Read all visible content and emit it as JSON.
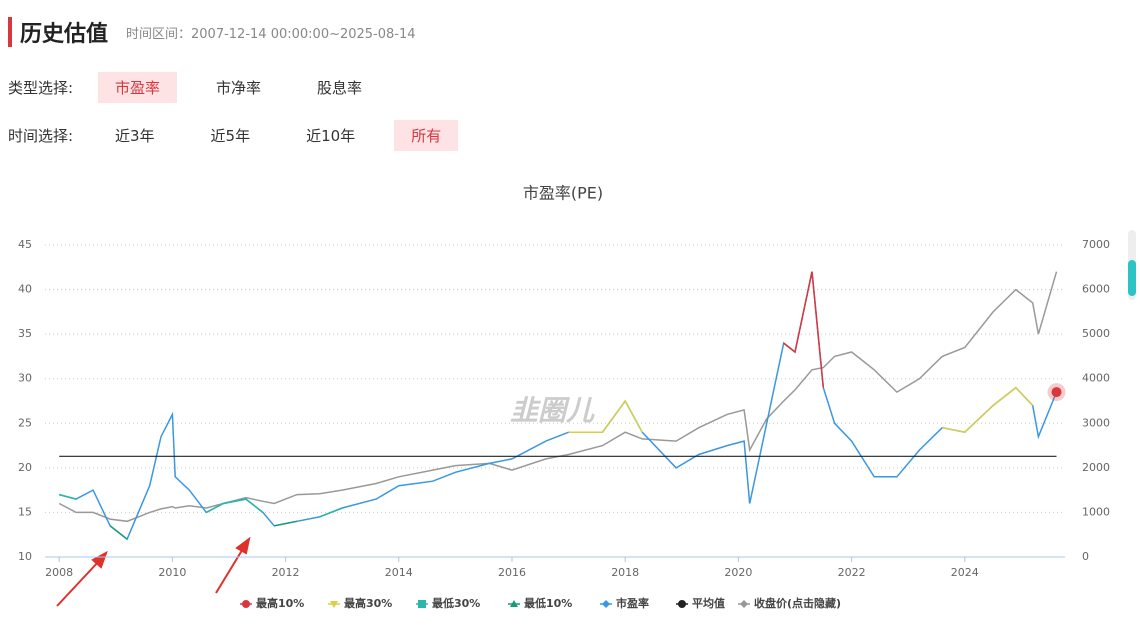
{
  "header": {
    "title": "历史估值",
    "range": "时间区间：2007-12-14 00:00:00~2025-08-14"
  },
  "type_select": {
    "label": "类型选择:",
    "options": [
      "市盈率",
      "市净率",
      "股息率"
    ],
    "active": 0
  },
  "time_select": {
    "label": "时间选择:",
    "options": [
      "近3年",
      "近5年",
      "近10年",
      "所有"
    ],
    "active": 3
  },
  "chart_data": {
    "type": "line",
    "title": "市盈率(PE)",
    "watermark": "韭圈儿",
    "x": [
      2008.0,
      2008.3,
      2008.6,
      2008.9,
      2009.2,
      2009.4,
      2009.6,
      2009.8,
      2010.0,
      2010.05,
      2010.3,
      2010.6,
      2010.9,
      2011.3,
      2011.6,
      2011.8,
      2012.2,
      2012.6,
      2013.0,
      2013.6,
      2014.0,
      2014.6,
      2015.0,
      2015.6,
      2016.0,
      2016.6,
      2017.0,
      2017.6,
      2018.0,
      2018.3,
      2018.9,
      2019.3,
      2019.8,
      2020.1,
      2020.2,
      2020.5,
      2020.8,
      2021.0,
      2021.3,
      2021.5,
      2021.7,
      2022.0,
      2022.4,
      2022.8,
      2023.2,
      2023.6,
      2024.0,
      2024.5,
      2024.9,
      2025.2,
      2025.3,
      2025.62
    ],
    "xlim": [
      2007.75,
      2025.77
    ],
    "xticks": [
      2008,
      2010,
      2012,
      2014,
      2016,
      2018,
      2020,
      2022,
      2024
    ],
    "ylim": [
      10,
      45
    ],
    "yticks": [
      10,
      15,
      20,
      25,
      30,
      35,
      40,
      45
    ],
    "y2lim": [
      0,
      7000
    ],
    "y2ticks": [
      0,
      1000,
      2000,
      3000,
      4000,
      5000,
      6000,
      7000
    ],
    "grid": true,
    "series": [
      {
        "name": "最高10%",
        "color": "#d9363e",
        "marker": "circle",
        "values": [
          null,
          null,
          null,
          null,
          null,
          null,
          null,
          null,
          null,
          null,
          null,
          null,
          null,
          null,
          null,
          null,
          null,
          null,
          null,
          null,
          null,
          null,
          null,
          null,
          null,
          null,
          null,
          null,
          null,
          null,
          null,
          null,
          null,
          null,
          null,
          null,
          34,
          33,
          42,
          29,
          null,
          null,
          null,
          null,
          null,
          null,
          null,
          null,
          29,
          null,
          null,
          null
        ]
      },
      {
        "name": "最高30%",
        "color": "#d8cf4a",
        "marker": "triangle-down",
        "values": [
          null,
          null,
          null,
          null,
          null,
          null,
          null,
          null,
          26,
          null,
          null,
          null,
          null,
          null,
          null,
          null,
          null,
          null,
          null,
          null,
          null,
          null,
          null,
          null,
          null,
          null,
          24,
          24,
          27.5,
          24,
          null,
          null,
          null,
          null,
          null,
          25,
          null,
          null,
          null,
          null,
          25,
          null,
          null,
          null,
          null,
          24.5,
          24,
          27,
          29,
          27,
          null,
          28.5
        ]
      },
      {
        "name": "最低30%",
        "color": "#2bb5ac",
        "marker": "square",
        "values": [
          17,
          16.5,
          null,
          null,
          null,
          null,
          null,
          null,
          null,
          null,
          null,
          15,
          16,
          16.5,
          15,
          null,
          null,
          14.5,
          15.5,
          null,
          null,
          null,
          null,
          null,
          null,
          null,
          null,
          null,
          null,
          null,
          null,
          null,
          null,
          null,
          null,
          null,
          null,
          null,
          null,
          null,
          null,
          null,
          null,
          null,
          null,
          null,
          null,
          null,
          null,
          null,
          null,
          null
        ]
      },
      {
        "name": "最低10%",
        "color": "#1a9978",
        "marker": "triangle-up",
        "values": [
          null,
          null,
          null,
          13.5,
          12,
          null,
          null,
          null,
          null,
          null,
          null,
          null,
          null,
          null,
          null,
          13.5,
          14,
          null,
          null,
          null,
          null,
          null,
          null,
          null,
          null,
          null,
          null,
          null,
          null,
          null,
          null,
          null,
          null,
          null,
          null,
          null,
          null,
          null,
          null,
          null,
          null,
          null,
          null,
          null,
          null,
          null,
          null,
          null,
          null,
          null,
          null,
          null
        ]
      },
      {
        "name": "市盈率",
        "color": "#3a97e0",
        "marker": "diamond",
        "values": [
          17,
          16.5,
          17.5,
          13.5,
          12,
          15,
          18,
          23.5,
          26,
          19,
          17.5,
          15,
          16,
          16.5,
          15,
          13.5,
          14,
          14.5,
          15.5,
          16.5,
          18,
          18.5,
          19.5,
          20.5,
          21,
          23,
          24,
          24,
          27.5,
          24,
          20,
          21.5,
          22.5,
          23,
          16,
          25,
          34,
          33,
          42,
          29,
          25,
          23,
          19,
          19,
          22,
          24.5,
          24,
          27,
          29,
          27,
          23.5,
          28.5
        ]
      },
      {
        "name": "平均值",
        "color": "#222222",
        "marker": "circle",
        "values": [
          21.3,
          21.3,
          21.3,
          21.3,
          21.3,
          21.3,
          21.3,
          21.3,
          21.3,
          21.3,
          21.3,
          21.3,
          21.3,
          21.3,
          21.3,
          21.3,
          21.3,
          21.3,
          21.3,
          21.3,
          21.3,
          21.3,
          21.3,
          21.3,
          21.3,
          21.3,
          21.3,
          21.3,
          21.3,
          21.3,
          21.3,
          21.3,
          21.3,
          21.3,
          21.3,
          21.3,
          21.3,
          21.3,
          21.3,
          21.3,
          21.3,
          21.3,
          21.3,
          21.3,
          21.3,
          21.3,
          21.3,
          21.3,
          21.3,
          21.3,
          21.3,
          21.3
        ]
      },
      {
        "name": "收盘价(点击隐藏)",
        "color": "#999999",
        "marker": "diamond",
        "axis": "y2",
        "values": [
          1200,
          1000,
          1000,
          850,
          800,
          900,
          1000,
          1080,
          1130,
          1100,
          1150,
          1100,
          1200,
          1330,
          1250,
          1200,
          1400,
          1420,
          1500,
          1650,
          1800,
          1950,
          2050,
          2100,
          1950,
          2200,
          2300,
          2500,
          2800,
          2650,
          2600,
          2900,
          3200,
          3300,
          2400,
          3100,
          3500,
          3750,
          4200,
          4250,
          4500,
          4600,
          4200,
          3700,
          4000,
          4500,
          4700,
          5500,
          6000,
          5700,
          5000,
          6400
        ]
      }
    ]
  }
}
